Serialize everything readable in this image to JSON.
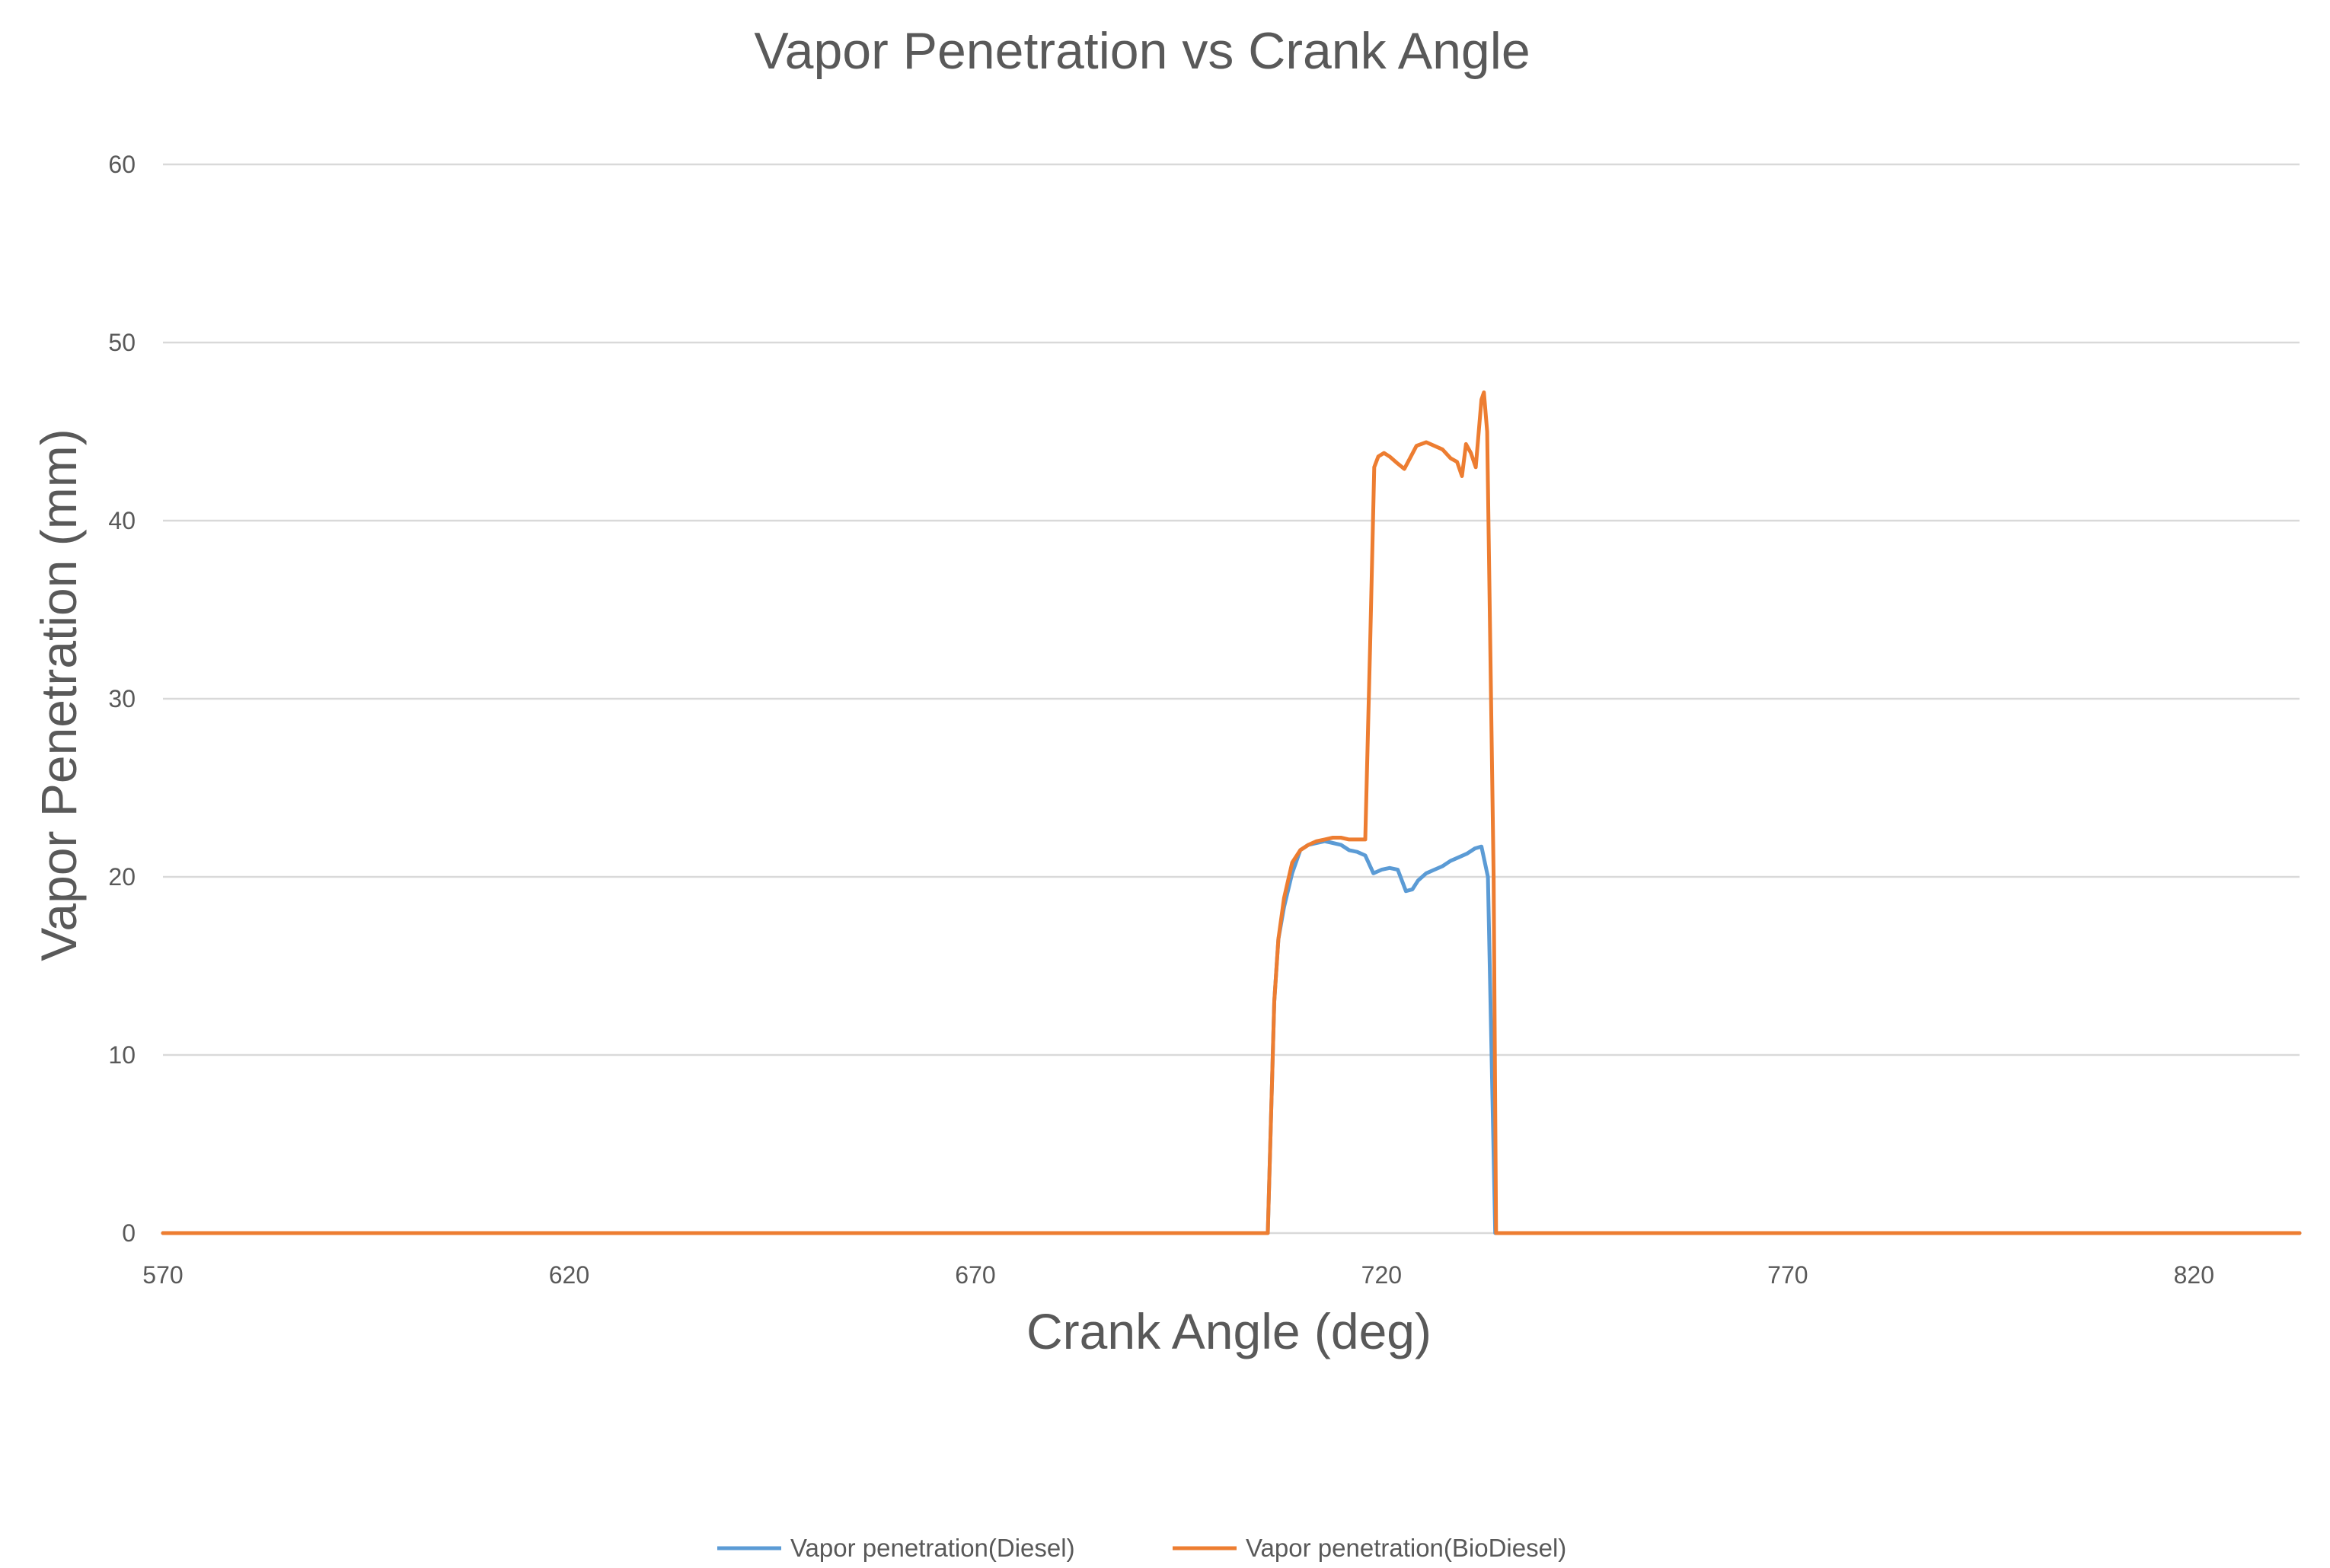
{
  "chart_data": {
    "type": "line",
    "title": "Vapor Penetration vs Crank Angle",
    "xlabel": "Crank Angle (deg)",
    "ylabel": "Vapor Penetration (mm)",
    "xlim": [
      570,
      833
    ],
    "ylim": [
      0,
      60
    ],
    "xticks": [
      570,
      620,
      670,
      720,
      770,
      820
    ],
    "yticks": [
      0,
      10,
      20,
      30,
      40,
      50,
      60
    ],
    "grid": true,
    "legend_position": "bottom",
    "series": [
      {
        "name": "Vapor penetration(Diesel)",
        "color": "#5B9BD5",
        "x": [
          570,
          706,
          706.8,
          707.3,
          708,
          709,
          710,
          711,
          712,
          713,
          714,
          715,
          716,
          717,
          718,
          719,
          719.5,
          720,
          721,
          722,
          723,
          723.8,
          724.5,
          725.5,
          726.5,
          727.5,
          728.5,
          729.5,
          730.5,
          731.5,
          732.3,
          733.1,
          734,
          833
        ],
        "y": [
          0,
          0,
          13,
          16.5,
          18.3,
          20.2,
          21.5,
          21.8,
          21.9,
          22.0,
          21.9,
          21.8,
          21.5,
          21.4,
          21.2,
          20.2,
          20.3,
          20.4,
          20.5,
          20.4,
          19.2,
          19.3,
          19.8,
          20.2,
          20.4,
          20.6,
          20.9,
          21.1,
          21.3,
          21.6,
          21.7,
          20.0,
          0,
          0
        ]
      },
      {
        "name": "Vapor penetration(BioDiesel)",
        "color": "#ED7D31",
        "x": [
          570,
          706,
          706.8,
          707.3,
          708,
          709,
          710,
          711,
          712,
          713,
          714,
          715,
          716,
          717,
          718,
          718.6,
          719.1,
          719.6,
          720.3,
          721,
          722,
          722.8,
          723.5,
          724.3,
          725.5,
          726.5,
          727.5,
          728.5,
          729.3,
          729.9,
          730.4,
          731,
          731.6,
          732.3,
          732.6,
          733,
          733.8,
          734.1,
          833
        ],
        "y": [
          0,
          0,
          13,
          16.5,
          18.8,
          20.8,
          21.5,
          21.8,
          22.0,
          22.1,
          22.2,
          22.2,
          22.1,
          22.1,
          22.1,
          33,
          43.0,
          43.6,
          43.8,
          43.6,
          43.2,
          42.9,
          43.5,
          44.2,
          44.4,
          44.2,
          44.0,
          43.5,
          43.3,
          42.5,
          44.3,
          43.8,
          43.0,
          46.8,
          47.2,
          45.0,
          20,
          0,
          0
        ]
      }
    ]
  }
}
